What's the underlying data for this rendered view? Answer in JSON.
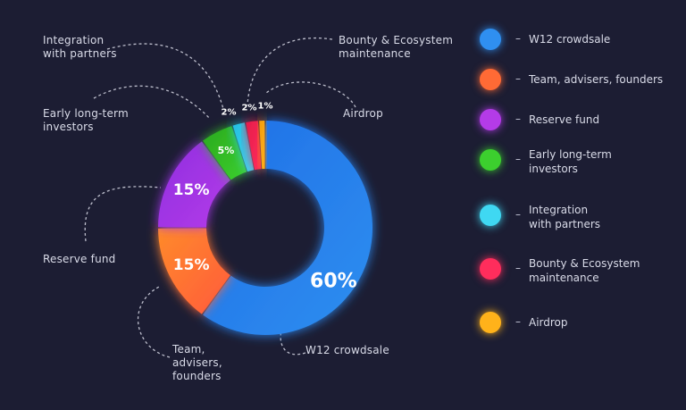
{
  "chart_data": {
    "type": "pie",
    "variant": "donut",
    "slices": [
      {
        "name": "W12 crowdsale",
        "value": 60,
        "label": "60%",
        "color": "#2f8ff0",
        "color2": "#1f6fe6"
      },
      {
        "name": "Team, advisers, founders",
        "value": 15,
        "label": "15%",
        "color": "#ff5a3c",
        "color2": "#ff8a2a"
      },
      {
        "name": "Reserve fund",
        "value": 15,
        "label": "15%",
        "color": "#b43be8",
        "color2": "#8f2fe0"
      },
      {
        "name": "Early long-term investors",
        "value": 5,
        "label": "5%",
        "color": "#3ccf2e",
        "color2": "#2aa81e"
      },
      {
        "name": "Integration with partners",
        "value": 2,
        "label": "2%",
        "color": "#3fd8f2",
        "color2": "#24bde0"
      },
      {
        "name": "Bounty & Ecosystem maintenance",
        "value": 2,
        "label": "2%",
        "color": "#ff2d5c",
        "color2": "#e51c4a"
      },
      {
        "name": "Airdrop",
        "value": 1,
        "label": "1%",
        "color": "#ffb21a",
        "color2": "#f59b0c"
      }
    ]
  },
  "callouts": {
    "integration": "Integration\nwith partners",
    "early": "Early long-term\ninvestors",
    "reserve": "Reserve fund",
    "team": "Team,\nadvisers,\nfounders",
    "bounty": "Bounty & Ecosystem\nmaintenance",
    "airdrop": "Airdrop",
    "crowdsale": "W12 crowdsale"
  },
  "legend": {
    "dash": "–",
    "items": [
      {
        "label": "W12 crowdsale",
        "color": "#2f8ff0"
      },
      {
        "label": "Team, advisers, founders",
        "color": "#ff6a35"
      },
      {
        "label": "Reserve fund",
        "color": "#b43be8"
      },
      {
        "label": "Early long-term\ninvestors",
        "color": "#3ccf2e"
      },
      {
        "label": "Integration\nwith partners",
        "color": "#3fd8f2"
      },
      {
        "label": "Bounty & Ecosystem\nmaintenance",
        "color": "#ff2d5c"
      },
      {
        "label": "Airdrop",
        "color": "#ffb21a"
      }
    ]
  }
}
